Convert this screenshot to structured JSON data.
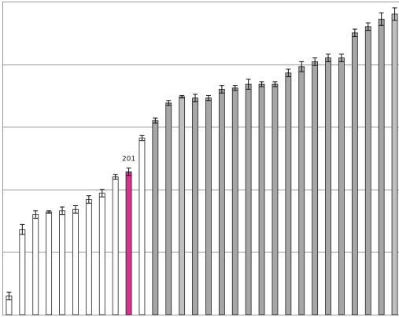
{
  "chart_data": {
    "type": "bar",
    "grid": true,
    "ylim": [
      0,
      250
    ],
    "y_gridlines": [
      50,
      100,
      150,
      200,
      250
    ],
    "values": [
      15,
      68,
      80,
      82,
      83,
      84,
      92,
      97,
      110,
      114,
      141,
      155,
      169,
      174,
      173,
      173,
      180,
      181,
      184,
      184,
      184,
      193,
      198,
      202,
      205,
      205,
      225,
      230,
      236,
      240
    ],
    "errors": [
      3,
      4,
      3,
      1,
      3,
      3,
      3,
      3,
      2,
      3,
      2,
      2,
      2,
      1,
      3,
      2,
      3,
      2,
      4,
      2,
      2,
      3,
      4,
      3,
      3,
      3,
      3,
      3,
      5,
      5
    ],
    "bar_styles": [
      "white",
      "white",
      "white",
      "white",
      "white",
      "white",
      "white",
      "white",
      "white",
      "highlight",
      "white",
      "dark",
      "dark",
      "light",
      "dark",
      "dark",
      "dark",
      "dark",
      "dark",
      "dark",
      "dark",
      "dark",
      "dark",
      "dark",
      "dark",
      "dark",
      "dark",
      "dark",
      "dark",
      "light"
    ],
    "data_labels": [
      {
        "index": 9,
        "text": "201"
      }
    ],
    "colors": {
      "white": "#ffffff",
      "highlight": "#d63391",
      "dark": "#a6a6a6",
      "light": "#c0c0c0",
      "bar_edge": "#222222",
      "grid": "#9a9a9a",
      "axis": "#999999"
    }
  }
}
